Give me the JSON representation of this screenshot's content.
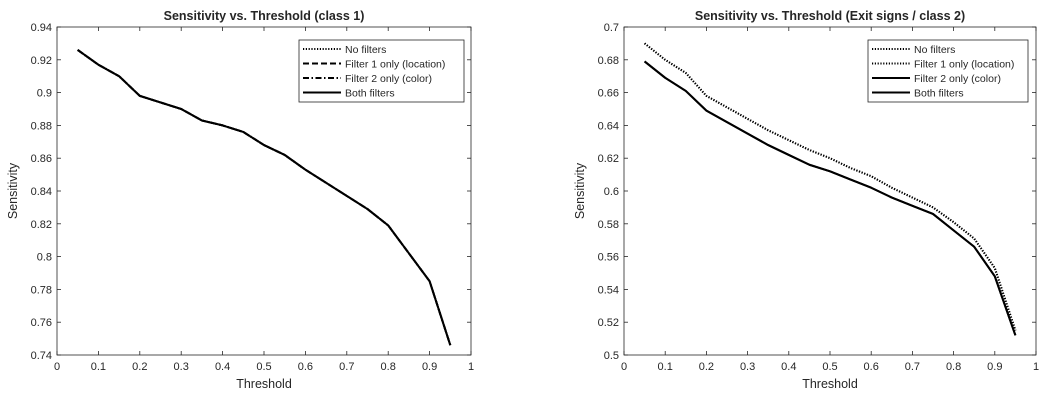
{
  "chart_data": [
    {
      "type": "line",
      "title": "Sensitivity vs. Threshold (class 1)",
      "xlabel": "Threshold",
      "ylabel": "Sensitivity",
      "xlim": [
        0,
        1
      ],
      "ylim": [
        0.74,
        0.94
      ],
      "xticks": [
        "0",
        "0.1",
        "0.2",
        "0.3",
        "0.4",
        "0.5",
        "0.6",
        "0.7",
        "0.8",
        "0.9",
        "1"
      ],
      "yticks": [
        "0.74",
        "0.76",
        "0.78",
        "0.8",
        "0.82",
        "0.84",
        "0.86",
        "0.88",
        "0.9",
        "0.92",
        "0.94"
      ],
      "grid": false,
      "legend_position": "top-right",
      "x": [
        0.05,
        0.1,
        0.15,
        0.2,
        0.25,
        0.3,
        0.35,
        0.4,
        0.45,
        0.5,
        0.55,
        0.6,
        0.65,
        0.7,
        0.75,
        0.8,
        0.85,
        0.9,
        0.95
      ],
      "series": [
        {
          "name": "No filters",
          "style": "dotted",
          "values": [
            0.926,
            0.917,
            0.91,
            0.898,
            0.894,
            0.89,
            0.883,
            0.88,
            0.876,
            0.868,
            0.862,
            0.853,
            0.845,
            0.837,
            0.829,
            0.819,
            0.802,
            0.785,
            0.746
          ]
        },
        {
          "name": "Filter 1 only (location)",
          "style": "dashed",
          "values": [
            0.926,
            0.917,
            0.91,
            0.898,
            0.894,
            0.89,
            0.883,
            0.88,
            0.876,
            0.868,
            0.862,
            0.853,
            0.845,
            0.837,
            0.829,
            0.819,
            0.802,
            0.785,
            0.746
          ]
        },
        {
          "name": "Filter 2 only (color)",
          "style": "dashdot",
          "values": [
            0.926,
            0.917,
            0.91,
            0.898,
            0.894,
            0.89,
            0.883,
            0.88,
            0.876,
            0.868,
            0.862,
            0.853,
            0.845,
            0.837,
            0.829,
            0.819,
            0.802,
            0.785,
            0.746
          ]
        },
        {
          "name": "Both filters",
          "style": "solid",
          "values": [
            0.926,
            0.917,
            0.91,
            0.898,
            0.894,
            0.89,
            0.883,
            0.88,
            0.876,
            0.868,
            0.862,
            0.853,
            0.845,
            0.837,
            0.829,
            0.819,
            0.802,
            0.785,
            0.746
          ]
        }
      ]
    },
    {
      "type": "line",
      "title": "Sensitivity vs. Threshold (Exit signs / class 2)",
      "xlabel": "Threshold",
      "ylabel": "Sensitivity",
      "xlim": [
        0,
        1
      ],
      "ylim": [
        0.5,
        0.7
      ],
      "xticks": [
        "0",
        "0.1",
        "0.2",
        "0.3",
        "0.4",
        "0.5",
        "0.6",
        "0.7",
        "0.8",
        "0.9",
        "1"
      ],
      "yticks": [
        "0.5",
        "0.52",
        "0.54",
        "0.56",
        "0.58",
        "0.6",
        "0.62",
        "0.64",
        "0.66",
        "0.68",
        "0.7"
      ],
      "grid": false,
      "legend_position": "top-right",
      "x": [
        0.05,
        0.1,
        0.15,
        0.2,
        0.25,
        0.3,
        0.35,
        0.4,
        0.45,
        0.5,
        0.55,
        0.6,
        0.65,
        0.7,
        0.75,
        0.8,
        0.85,
        0.9,
        0.95
      ],
      "series": [
        {
          "name": "No filters",
          "style": "dotted",
          "values": [
            0.69,
            0.68,
            0.672,
            0.658,
            0.651,
            0.644,
            0.637,
            0.631,
            0.625,
            0.62,
            0.614,
            0.609,
            0.602,
            0.596,
            0.59,
            0.581,
            0.571,
            0.553,
            0.515
          ]
        },
        {
          "name": "Filter 1 only (location)",
          "style": "dotted",
          "values": [
            0.69,
            0.68,
            0.672,
            0.658,
            0.651,
            0.644,
            0.637,
            0.631,
            0.625,
            0.62,
            0.614,
            0.609,
            0.602,
            0.596,
            0.59,
            0.581,
            0.571,
            0.553,
            0.515
          ]
        },
        {
          "name": "Filter 2 only (color)",
          "style": "solid",
          "values": [
            0.679,
            0.669,
            0.661,
            0.649,
            0.642,
            0.635,
            0.628,
            0.622,
            0.616,
            0.612,
            0.607,
            0.602,
            0.596,
            0.591,
            0.586,
            0.576,
            0.566,
            0.548,
            0.512
          ]
        },
        {
          "name": "Both filters",
          "style": "solid",
          "values": [
            0.679,
            0.669,
            0.661,
            0.649,
            0.642,
            0.635,
            0.628,
            0.622,
            0.616,
            0.612,
            0.607,
            0.602,
            0.596,
            0.591,
            0.586,
            0.576,
            0.566,
            0.548,
            0.512
          ]
        }
      ]
    }
  ]
}
